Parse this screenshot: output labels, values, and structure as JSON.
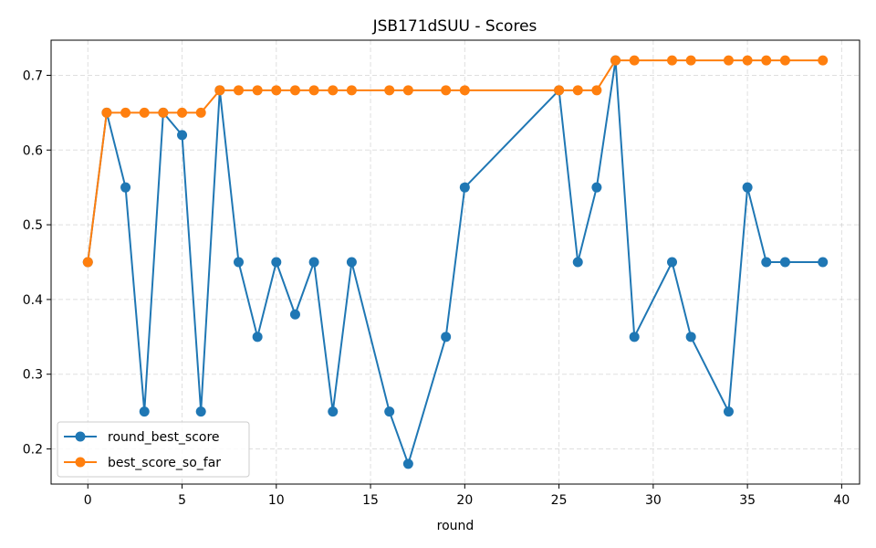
{
  "chart_data": {
    "type": "line",
    "title": "JSB171dSUU - Scores",
    "xlabel": "round",
    "ylabel": "",
    "xlim": [
      -1.95,
      40.95
    ],
    "ylim": [
      0.153,
      0.747
    ],
    "xticks": [
      0,
      5,
      10,
      15,
      20,
      25,
      30,
      35,
      40
    ],
    "yticks": [
      0.2,
      0.3,
      0.4,
      0.5,
      0.6,
      0.7
    ],
    "grid": true,
    "legend_position": "lower-left",
    "series": [
      {
        "name": "round_best_score",
        "color": "#1f77b4",
        "x": [
          0,
          1,
          2,
          3,
          4,
          5,
          6,
          7,
          8,
          9,
          10,
          11,
          12,
          13,
          14,
          16,
          17,
          19,
          20,
          25,
          26,
          27,
          28,
          29,
          31,
          32,
          34,
          35,
          36,
          37,
          39
        ],
        "y": [
          0.45,
          0.65,
          0.55,
          0.25,
          0.65,
          0.62,
          0.25,
          0.68,
          0.45,
          0.35,
          0.45,
          0.38,
          0.45,
          0.25,
          0.45,
          0.25,
          0.18,
          0.35,
          0.55,
          0.68,
          0.45,
          0.55,
          0.72,
          0.35,
          0.45,
          0.35,
          0.25,
          0.55,
          0.45,
          0.45,
          0.45
        ]
      },
      {
        "name": "best_score_so_far",
        "color": "#ff7f0e",
        "x": [
          0,
          1,
          2,
          3,
          4,
          5,
          6,
          7,
          8,
          9,
          10,
          11,
          12,
          13,
          14,
          16,
          17,
          19,
          20,
          25,
          26,
          27,
          28,
          29,
          31,
          32,
          34,
          35,
          36,
          37,
          39
        ],
        "y": [
          0.45,
          0.65,
          0.65,
          0.65,
          0.65,
          0.65,
          0.65,
          0.68,
          0.68,
          0.68,
          0.68,
          0.68,
          0.68,
          0.68,
          0.68,
          0.68,
          0.68,
          0.68,
          0.68,
          0.68,
          0.68,
          0.68,
          0.72,
          0.72,
          0.72,
          0.72,
          0.72,
          0.72,
          0.72,
          0.72,
          0.72
        ]
      }
    ]
  }
}
